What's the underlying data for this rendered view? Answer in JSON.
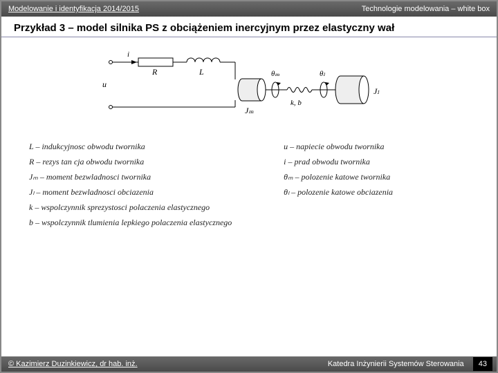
{
  "header": {
    "left": "Modelowanie i identyfikacja 2014/2015",
    "right": "Technologie modelowania – white box"
  },
  "title": "Przykład 3 – model silnika PS z obciążeniem inercyjnym przez elastyczny wał",
  "diagram": {
    "labels": {
      "i": "i",
      "R": "R",
      "L": "L",
      "u": "u",
      "Jm": "Jₘ",
      "theta_m": "θₘ",
      "kb": "k, b",
      "theta_l": "θₗ",
      "Jl": "Jₗ"
    },
    "stroke": "#000000",
    "fill_shade": "#dddddd"
  },
  "defs": {
    "left": [
      {
        "sym": "L",
        "text": "indukcyjnosc obwodu twornika"
      },
      {
        "sym": "R",
        "text": "rezys tan cja obwodu twornika"
      },
      {
        "sym": "Jₘ",
        "text": "moment bezwladnosci twornika"
      },
      {
        "sym": "Jₗ",
        "text": "moment bezwladnosci obciazenia"
      },
      {
        "sym": "k",
        "text": "wspolczynnik sprezystosci polaczenia elastycznego"
      },
      {
        "sym": "b",
        "text": "wspolczynnik tlumienia lepkiego polaczenia elastycznego"
      }
    ],
    "right": [
      {
        "sym": "u",
        "text": "napiecie obwodu twornika"
      },
      {
        "sym": "i",
        "text": "prad obwodu twornika"
      },
      {
        "sym": "θₘ",
        "text": "polozenie katowe twornika"
      },
      {
        "sym": "θₗ",
        "text": "polozenie katowe obciazenia"
      }
    ]
  },
  "footer": {
    "left": "© Kazimierz Duzinkiewicz,  dr hab. inż.",
    "right": "Katedra Inżynierii Systemów Sterowania",
    "page": "43"
  }
}
